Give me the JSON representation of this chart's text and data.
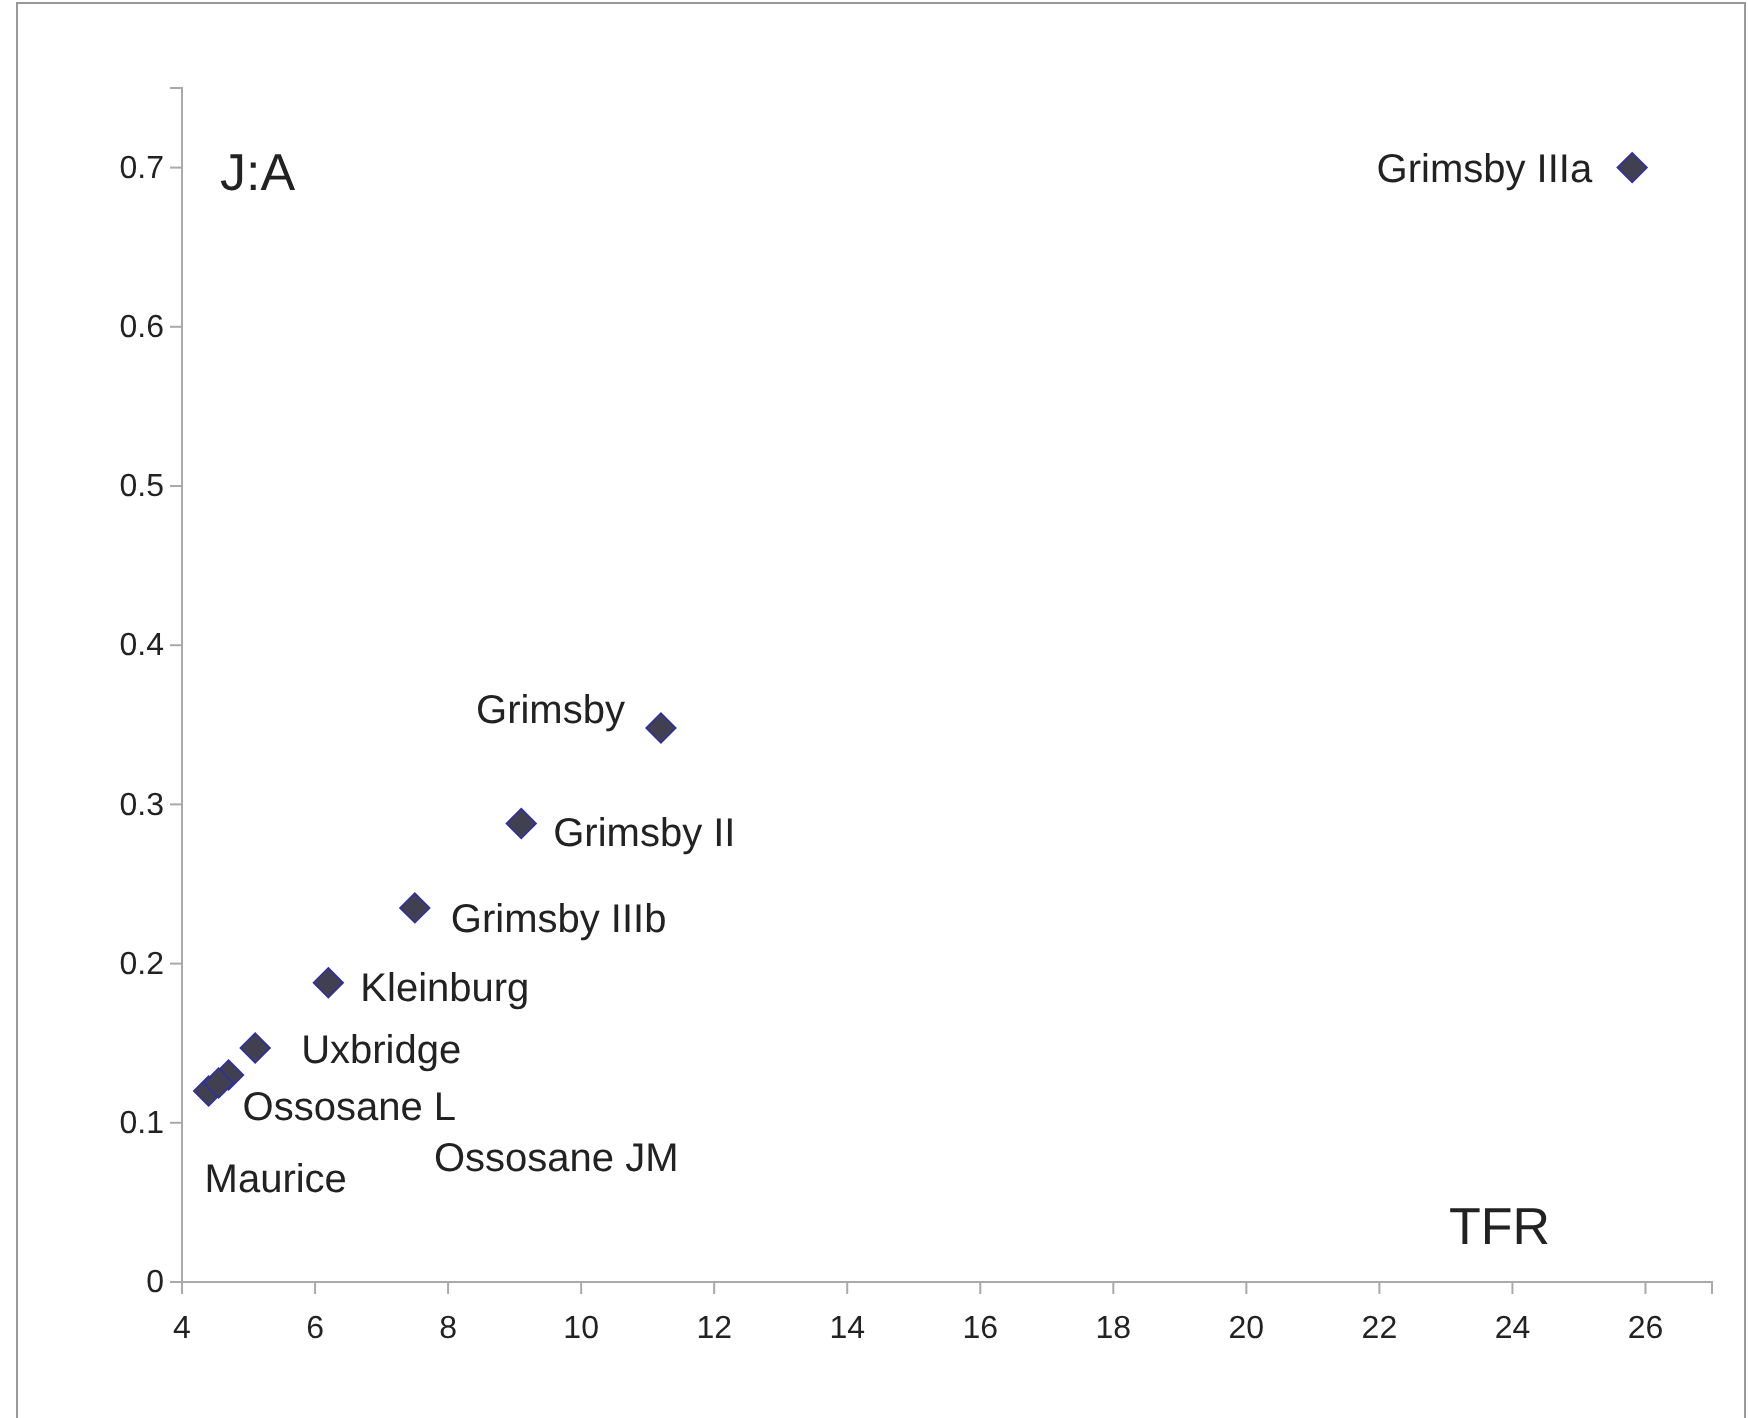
{
  "chart_data": {
    "type": "scatter",
    "xlabel": "TFR",
    "ylabel": "J:A",
    "x": [
      25.8,
      11.2,
      9.1,
      7.5,
      6.2,
      5.1,
      4.7,
      4.4,
      4.55
    ],
    "series": [
      {
        "color": "#404050",
        "values": [
          0.7,
          0.348,
          0.288,
          0.235,
          0.188,
          0.147,
          0.13,
          0.12,
          0.125
        ]
      }
    ],
    "xlim": [
      4,
      27
    ],
    "xticks": [
      4,
      6,
      8,
      10,
      12,
      14,
      16,
      18,
      20,
      22,
      24,
      26
    ],
    "ylim": [
      0,
      0.75
    ],
    "yticks": [
      0,
      0.1,
      0.2,
      0.3,
      0.4,
      0.5,
      0.6,
      0.7
    ],
    "grid": false,
    "marker": "diamond",
    "annotations": [
      {
        "text": "Grimsby IIIa",
        "x": 25.8,
        "y": 0.7
      },
      {
        "text": "Grimsby",
        "x": 11.2,
        "y": 0.348
      },
      {
        "text": "Grimsby II",
        "x": 9.1,
        "y": 0.288
      },
      {
        "text": "Grimsby IIIb",
        "x": 7.5,
        "y": 0.235
      },
      {
        "text": "Kleinburg",
        "x": 6.2,
        "y": 0.188
      },
      {
        "text": "Uxbridge",
        "x": 5.1,
        "y": 0.147
      },
      {
        "text": "Ossosane L",
        "x": 4.7,
        "y": 0.13
      },
      {
        "text": "Maurice",
        "x": 4.4,
        "y": 0.12
      },
      "Ossosane JM"
    ]
  }
}
